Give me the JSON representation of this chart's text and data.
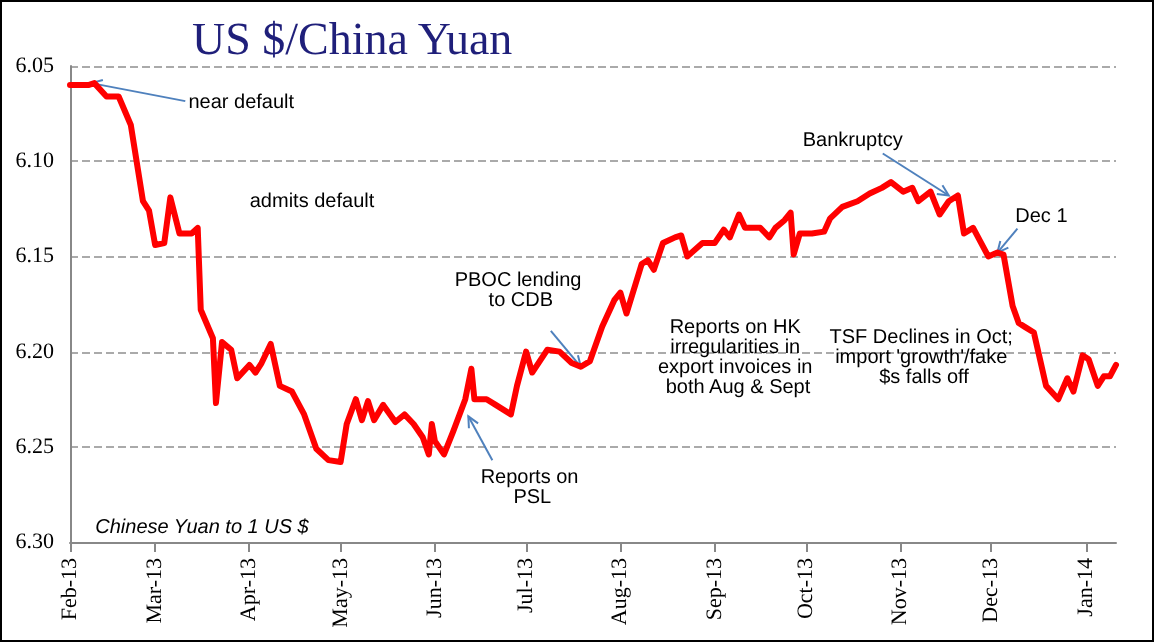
{
  "chart_data": {
    "type": "line",
    "title": "US $/China Yuan",
    "x": [
      "2013-02-01",
      "2013-02-07",
      "2013-02-09",
      "2013-02-13",
      "2013-02-17",
      "2013-02-21",
      "2013-02-25",
      "2013-02-27",
      "2013-03-01",
      "2013-03-04",
      "2013-03-06",
      "2013-03-09",
      "2013-03-13",
      "2013-03-15",
      "2013-03-16",
      "2013-03-20",
      "2013-03-21",
      "2013-03-23",
      "2013-03-26",
      "2013-03-28",
      "2013-04-01",
      "2013-04-03",
      "2013-04-05",
      "2013-04-08",
      "2013-04-11",
      "2013-04-15",
      "2013-04-19",
      "2013-04-23",
      "2013-04-27",
      "2013-05-01",
      "2013-05-03",
      "2013-05-06",
      "2013-05-08",
      "2013-05-10",
      "2013-05-12",
      "2013-05-15",
      "2013-05-19",
      "2013-05-22",
      "2013-05-25",
      "2013-05-28",
      "2013-05-30",
      "2013-05-31",
      "2013-06-01",
      "2013-06-04",
      "2013-06-07",
      "2013-06-11",
      "2013-06-13",
      "2013-06-14",
      "2013-06-18",
      "2013-06-21",
      "2013-06-26",
      "2013-06-28",
      "2013-07-01",
      "2013-07-03",
      "2013-07-08",
      "2013-07-12",
      "2013-07-16",
      "2013-07-19",
      "2013-07-22",
      "2013-07-26",
      "2013-07-30",
      "2013-08-01",
      "2013-08-03",
      "2013-08-08",
      "2013-08-10",
      "2013-08-12",
      "2013-08-15",
      "2013-08-19",
      "2013-08-21",
      "2013-08-23",
      "2013-08-28",
      "2013-09-01",
      "2013-09-04",
      "2013-09-06",
      "2013-09-09",
      "2013-09-11",
      "2013-09-16",
      "2013-09-19",
      "2013-09-21",
      "2013-09-24",
      "2013-09-26",
      "2013-09-27",
      "2013-09-29",
      "2013-10-03",
      "2013-10-07",
      "2013-10-09",
      "2013-10-13",
      "2013-10-18",
      "2013-10-22",
      "2013-10-26",
      "2013-10-29",
      "2013-11-02",
      "2013-11-05",
      "2013-11-07",
      "2013-11-11",
      "2013-11-14",
      "2013-11-17",
      "2013-11-20",
      "2013-11-22",
      "2013-11-25",
      "2013-11-30",
      "2013-12-03",
      "2013-12-05",
      "2013-12-08",
      "2013-12-10",
      "2013-12-12",
      "2013-12-15",
      "2013-12-17",
      "2013-12-19",
      "2013-12-23",
      "2013-12-26",
      "2013-12-28",
      "2013-12-31",
      "2014-01-02",
      "2014-01-05",
      "2014-01-07",
      "2014-01-09",
      "2014-01-11"
    ],
    "series": [
      {
        "color": "#ff0000",
        "values": [
          6.06,
          6.06,
          6.059,
          6.066,
          6.066,
          6.081,
          6.121,
          6.126,
          6.144,
          6.143,
          6.119,
          6.138,
          6.138,
          6.135,
          6.178,
          6.193,
          6.227,
          6.195,
          6.199,
          6.214,
          6.207,
          6.211,
          6.206,
          6.196,
          6.218,
          6.221,
          6.233,
          6.251,
          6.257,
          6.258,
          6.238,
          6.225,
          6.236,
          6.226,
          6.236,
          6.228,
          6.237,
          6.233,
          6.238,
          6.245,
          6.254,
          6.238,
          6.247,
          6.254,
          6.242,
          6.225,
          6.209,
          6.225,
          6.225,
          6.228,
          6.233,
          6.218,
          6.2,
          6.211,
          6.199,
          6.2,
          6.206,
          6.208,
          6.205,
          6.187,
          6.173,
          6.169,
          6.18,
          6.154,
          6.152,
          6.157,
          6.143,
          6.14,
          6.139,
          6.15,
          6.143,
          6.143,
          6.136,
          6.14,
          6.128,
          6.135,
          6.135,
          6.14,
          6.135,
          6.131,
          6.127,
          6.149,
          6.138,
          6.138,
          6.137,
          6.13,
          6.124,
          6.121,
          6.117,
          6.114,
          6.111,
          6.116,
          6.114,
          6.121,
          6.116,
          6.128,
          6.121,
          6.118,
          6.138,
          6.135,
          6.15,
          6.148,
          6.149,
          6.176,
          6.185,
          6.187,
          6.19,
          6.204,
          6.218,
          6.225,
          6.214,
          6.221,
          6.202,
          6.204,
          6.218,
          6.213,
          6.213,
          6.207
        ]
      }
    ],
    "xlim": [
      "2013-02-01",
      "2014-01-11"
    ],
    "xticks": [
      {
        "value": "2013-02-01",
        "label": "Feb-13"
      },
      {
        "value": "2013-03-01",
        "label": "Mar-13"
      },
      {
        "value": "2013-04-01",
        "label": "Apr-13"
      },
      {
        "value": "2013-05-01",
        "label": "May-13"
      },
      {
        "value": "2013-06-01",
        "label": "Jun-13"
      },
      {
        "value": "2013-07-01",
        "label": "Jul-13"
      },
      {
        "value": "2013-08-01",
        "label": "Aug-13"
      },
      {
        "value": "2013-09-01",
        "label": "Sep-13"
      },
      {
        "value": "2013-10-01",
        "label": "Oct-13"
      },
      {
        "value": "2013-11-01",
        "label": "Nov-13"
      },
      {
        "value": "2013-12-01",
        "label": "Dec-13"
      },
      {
        "value": "2014-01-01",
        "label": "Jan-14"
      }
    ],
    "ylim": [
      6.3,
      6.05
    ],
    "yticks": [
      {
        "value": 6.05,
        "label": "6.05"
      },
      {
        "value": 6.1,
        "label": "6.10"
      },
      {
        "value": 6.15,
        "label": "6.15"
      },
      {
        "value": 6.2,
        "label": "6.20"
      },
      {
        "value": 6.25,
        "label": "6.25"
      },
      {
        "value": 6.3,
        "label": "6.30"
      }
    ],
    "grid": "y",
    "marker": "none",
    "line_style": "solid",
    "annotations": [
      {
        "text": "near default",
        "x": "2013-02-08",
        "y": 6.059
      },
      "admits default",
      {
        "text": "PBOC lending to CDB",
        "x": "2013-07-19",
        "y": 6.208
      },
      {
        "text": "Reports on PSL",
        "x": "2013-06-12",
        "y": 6.234
      },
      "Reports on HK irregularities in export invoices in both Aug & Sept",
      {
        "text": "Bankruptcy",
        "x": "2013-11-17",
        "y": 6.118
      },
      {
        "text": "Dec 1",
        "x": "2013-12-03",
        "y": 6.148
      },
      "TSF Declines in Oct; import 'growth'/fake $s falls off",
      "Chinese Yuan to 1 US $"
    ]
  }
}
